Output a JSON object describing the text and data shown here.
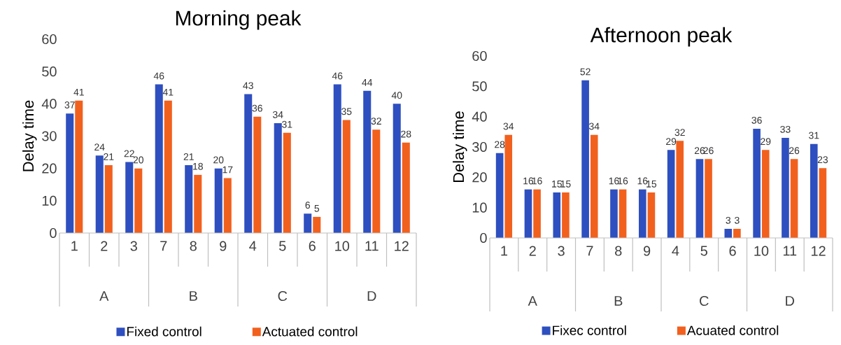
{
  "chart_data": [
    {
      "type": "bar",
      "title": "Morning peak",
      "ylabel": "Delay time",
      "categories": [
        "1",
        "2",
        "3",
        "7",
        "8",
        "9",
        "4",
        "5",
        "6",
        "10",
        "11",
        "12"
      ],
      "series": [
        {
          "name": "Fixed control",
          "color": "#2e4fbf",
          "values": [
            37,
            24,
            22,
            46,
            21,
            20,
            43,
            34,
            6,
            46,
            44,
            40
          ]
        },
        {
          "name": "Actuated control",
          "color": "#f2601e",
          "values": [
            41,
            21,
            20,
            41,
            18,
            17,
            36,
            31,
            5,
            35,
            32,
            28
          ]
        }
      ],
      "ylim": [
        0,
        60
      ],
      "yticks": [
        0,
        10,
        20,
        30,
        40,
        50,
        60
      ],
      "data_labels": true,
      "legend": "bottom",
      "annotations": [
        "A",
        "B",
        "C",
        "D"
      ]
    },
    {
      "type": "bar",
      "title": "Afternoon peak",
      "ylabel": "Delay time",
      "categories": [
        "1",
        "2",
        "3",
        "7",
        "8",
        "9",
        "4",
        "5",
        "6",
        "10",
        "11",
        "12"
      ],
      "series": [
        {
          "name": "Fixec control",
          "color": "#2e4fbf",
          "values": [
            28,
            16,
            15,
            52,
            16,
            16,
            29,
            26,
            3,
            36,
            33,
            31
          ]
        },
        {
          "name": "Acuated control",
          "color": "#f2601e",
          "values": [
            34,
            16,
            15,
            34,
            16,
            15,
            32,
            26,
            3,
            29,
            26,
            23
          ]
        }
      ],
      "ylim": [
        0,
        60
      ],
      "yticks": [
        0,
        10,
        20,
        30,
        40,
        50,
        60
      ],
      "data_labels": true,
      "legend": "bottom",
      "annotations": [
        "A",
        "B",
        "C",
        "D"
      ]
    }
  ]
}
